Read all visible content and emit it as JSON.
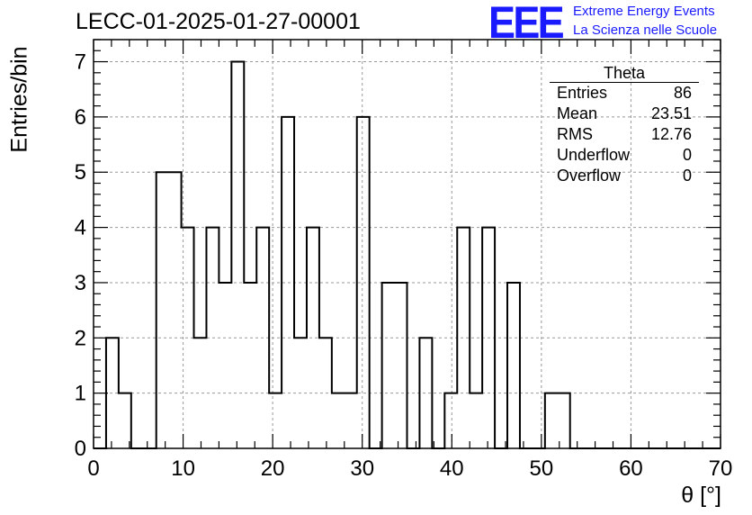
{
  "title": "LECC-01-2025-01-27-00001",
  "logo": {
    "mark": "EEE",
    "line1": "Extreme Energy Events",
    "line2": "La Scienza nelle Scuole",
    "color": "#1a1aff"
  },
  "stats_box": {
    "name": "Theta",
    "rows": [
      {
        "label": "Entries",
        "value": "86"
      },
      {
        "label": "Mean",
        "value": "23.51"
      },
      {
        "label": "RMS",
        "value": "12.76"
      },
      {
        "label": "Underflow",
        "value": "0"
      },
      {
        "label": "Overflow",
        "value": "0"
      }
    ]
  },
  "chart_data": {
    "type": "bar",
    "style": "step-histogram",
    "xlabel": "θ [°]",
    "ylabel": "Entries/bin",
    "xlim": [
      0,
      70
    ],
    "ylim": [
      0,
      7.4
    ],
    "x_ticks": [
      0,
      10,
      20,
      30,
      40,
      50,
      60,
      70
    ],
    "y_ticks": [
      0,
      1,
      2,
      3,
      4,
      5,
      6,
      7
    ],
    "grid": true,
    "bin_edges": [
      0,
      1.4,
      2.8,
      4.2,
      5.6,
      7.0,
      8.4,
      9.8,
      11.2,
      12.6,
      14.0,
      15.4,
      16.8,
      18.2,
      19.6,
      21.0,
      22.4,
      23.8,
      25.2,
      26.6,
      28.0,
      29.4,
      30.8,
      32.2,
      33.6,
      35.0,
      36.4,
      37.8,
      39.2,
      40.6,
      42.0,
      43.4,
      44.8,
      46.2,
      47.6,
      49.0,
      50.4,
      51.8,
      53.2,
      54.6,
      56.0,
      57.4,
      58.8,
      60.2,
      61.6,
      63.0,
      64.4,
      65.8,
      67.2,
      68.6,
      70.0
    ],
    "values": [
      0,
      2,
      1,
      0,
      0,
      5,
      5,
      4,
      2,
      4,
      3,
      7,
      3,
      4,
      1,
      6,
      2,
      4,
      2,
      1,
      1,
      6,
      0,
      3,
      3,
      0,
      2,
      0,
      1,
      4,
      1,
      4,
      0,
      3,
      0,
      0,
      1,
      1,
      0,
      0,
      0,
      0,
      0,
      0,
      0,
      0,
      0,
      0,
      0,
      0
    ]
  }
}
